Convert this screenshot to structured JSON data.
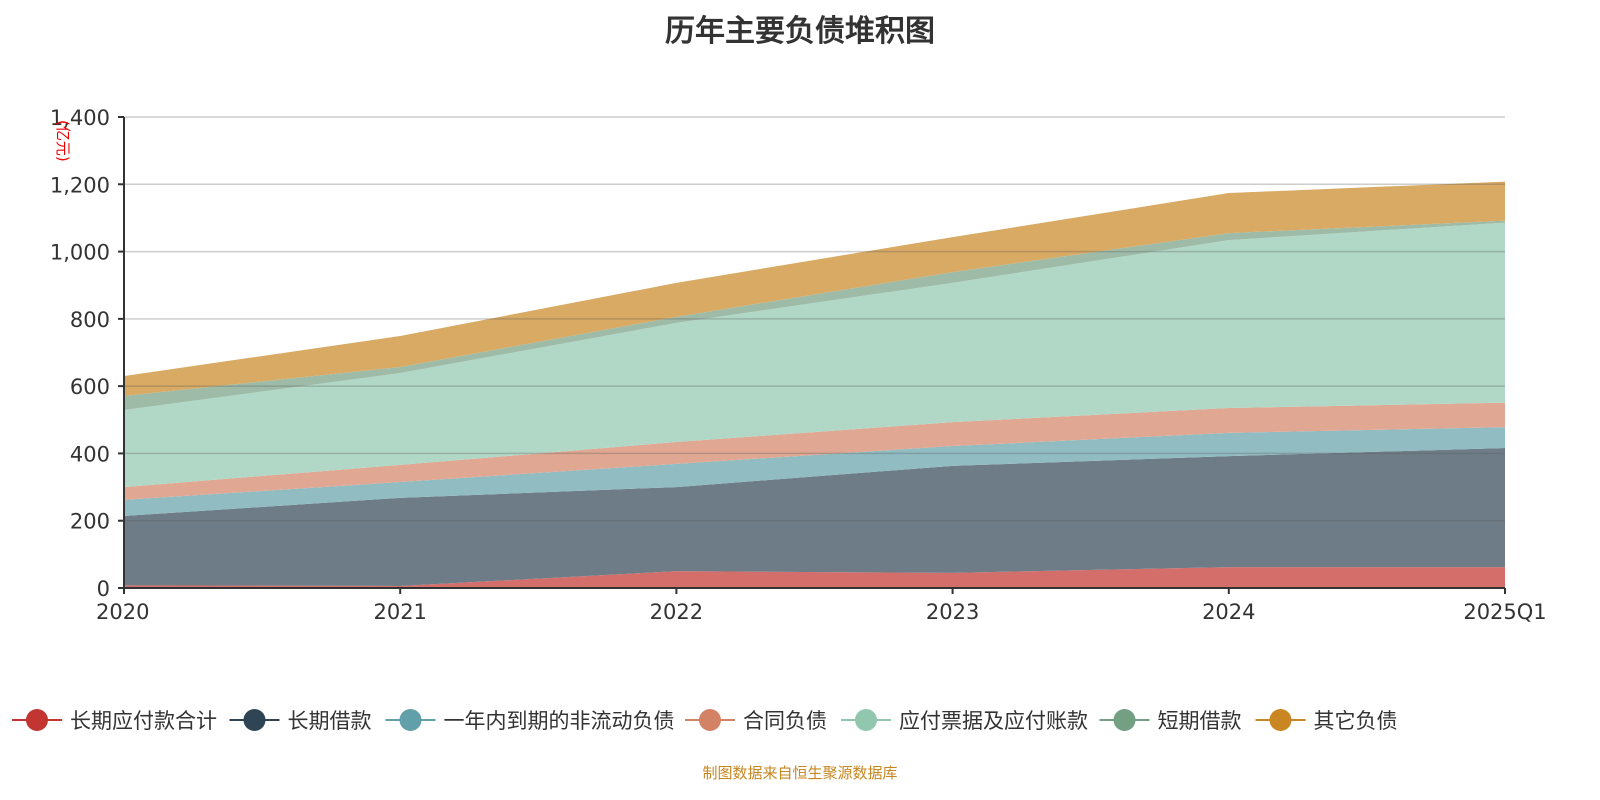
{
  "chart_data": {
    "type": "area",
    "stacked": true,
    "title": "历年主要负债堆积图",
    "ylabel": "(亿元)",
    "ylim": [
      0,
      1400
    ],
    "yticks": [
      0,
      200,
      400,
      600,
      800,
      1000,
      1200,
      1400
    ],
    "ytick_labels": [
      "0",
      "200",
      "400",
      "600",
      "800",
      "1,000",
      "1,200",
      "1,400"
    ],
    "categories": [
      "2020",
      "2021",
      "2022",
      "2023",
      "2024",
      "2025Q1"
    ],
    "grid": true,
    "legend_position": "bottom",
    "series": [
      {
        "name": "长期应付款合计",
        "color": "#c23531",
        "area_color": "#d46e6b",
        "values": [
          8,
          6,
          50,
          45,
          62,
          62
        ]
      },
      {
        "name": "长期借款",
        "color": "#2f4554",
        "area_color": "#6e7c87",
        "values": [
          206,
          262,
          250,
          318,
          330,
          354
        ]
      },
      {
        "name": "一年内到期的非流动负债",
        "color": "#61a0a8",
        "area_color": "#90bcc2",
        "values": [
          48,
          47,
          69,
          59,
          69,
          62
        ]
      },
      {
        "name": "合同负债",
        "color": "#d48265",
        "area_color": "#e0a793",
        "values": [
          38,
          51,
          65,
          71,
          74,
          73
        ]
      },
      {
        "name": "应付票据及应付账款",
        "color": "#91c7ae",
        "area_color": "#b1d8c6",
        "values": [
          229,
          273,
          354,
          414,
          499,
          535
        ]
      },
      {
        "name": "短期借款",
        "color": "#749f83",
        "area_color": "#9ebba8",
        "values": [
          42,
          18,
          18,
          32,
          21,
          6
        ]
      },
      {
        "name": "其它负债",
        "color": "#ca8622",
        "area_color": "#d8aa63",
        "values": [
          59,
          92,
          101,
          104,
          119,
          116
        ]
      }
    ]
  },
  "footer": "制图数据来自恒生聚源数据库"
}
